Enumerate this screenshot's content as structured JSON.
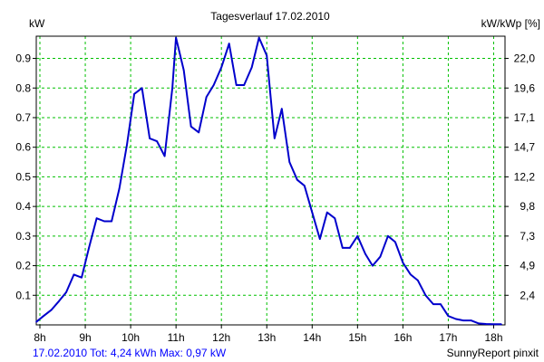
{
  "chart_data": {
    "type": "line",
    "title": "Tagesverlauf 17.02.2010",
    "ylabel_left": "kW",
    "ylabel_right": "kW/kWp [%]",
    "x_tick_labels": [
      "8h",
      "9h",
      "10h",
      "11h",
      "12h",
      "13h",
      "14h",
      "15h",
      "16h",
      "17h",
      "18h"
    ],
    "x_ticks_hours": [
      8,
      9,
      10,
      11,
      12,
      13,
      14,
      15,
      16,
      17,
      18
    ],
    "xlim": [
      7.92,
      18.25
    ],
    "y_ticks": [
      0.1,
      0.2,
      0.3,
      0.4,
      0.5,
      0.6,
      0.7,
      0.8,
      0.9
    ],
    "y_tick_labels": [
      "0.1",
      "0.2",
      "0.3",
      "0.4",
      "0.5",
      "0.6",
      "0.7",
      "0.8",
      "0.9"
    ],
    "ylim": [
      0,
      0.975
    ],
    "right_tick_labels": [
      "2,4",
      "4,9",
      "7,3",
      "9,8",
      "12,2",
      "14,7",
      "17,1",
      "19,6",
      "22,0"
    ],
    "grid": true,
    "line_color": "#0000cc",
    "grid_color": "#00c000",
    "series": [
      {
        "x": [
          7.92,
          8.08,
          8.25,
          8.42,
          8.58,
          8.75,
          8.92,
          9.08,
          9.25,
          9.42,
          9.58,
          9.75,
          9.92,
          10.08,
          10.25,
          10.42,
          10.58,
          10.75,
          10.92,
          11.0,
          11.17,
          11.33,
          11.5,
          11.67,
          11.83,
          12.0,
          12.17,
          12.33,
          12.5,
          12.67,
          12.83,
          13.0,
          13.17,
          13.33,
          13.5,
          13.67,
          13.83,
          14.0,
          14.17,
          14.33,
          14.5,
          14.67,
          14.83,
          15.0,
          15.17,
          15.33,
          15.5,
          15.67,
          15.83,
          16.0,
          16.17,
          16.33,
          16.5,
          16.67,
          16.83,
          17.0,
          17.17,
          17.33,
          17.5,
          17.67,
          17.83,
          18.0,
          18.17
        ],
        "y": [
          0.01,
          0.03,
          0.05,
          0.08,
          0.11,
          0.17,
          0.16,
          0.26,
          0.36,
          0.35,
          0.35,
          0.46,
          0.61,
          0.78,
          0.8,
          0.63,
          0.62,
          0.57,
          0.8,
          0.97,
          0.86,
          0.67,
          0.65,
          0.77,
          0.81,
          0.87,
          0.95,
          0.81,
          0.81,
          0.87,
          0.97,
          0.91,
          0.63,
          0.73,
          0.55,
          0.49,
          0.47,
          0.38,
          0.29,
          0.38,
          0.36,
          0.26,
          0.26,
          0.3,
          0.24,
          0.2,
          0.23,
          0.3,
          0.28,
          0.21,
          0.17,
          0.15,
          0.1,
          0.07,
          0.07,
          0.03,
          0.02,
          0.015,
          0.015,
          0.005,
          0.003,
          0.002,
          0.002
        ]
      }
    ]
  },
  "footer": {
    "left": "17.02.2010 Tot: 4,24 kWh Max: 0,97 kW",
    "right": "SunnyReport pinxit"
  }
}
